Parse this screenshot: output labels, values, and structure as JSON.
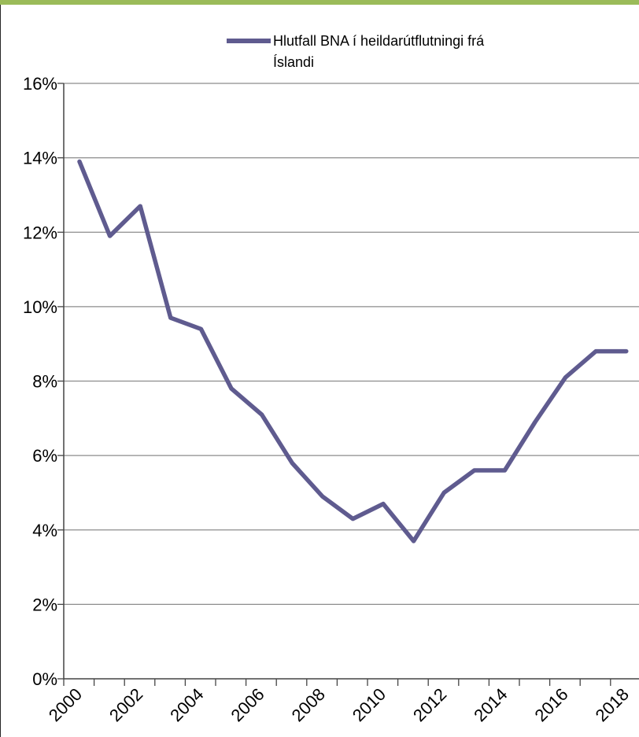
{
  "chart_data": {
    "type": "line",
    "title": "",
    "xlabel": "",
    "ylabel": "",
    "x": [
      2000,
      2001,
      2002,
      2003,
      2004,
      2005,
      2006,
      2007,
      2008,
      2009,
      2010,
      2011,
      2012,
      2013,
      2014,
      2015,
      2016,
      2017,
      2018
    ],
    "x_tick_labels": [
      "2000",
      "2002",
      "2004",
      "2006",
      "2008",
      "2010",
      "2012",
      "2014",
      "2016",
      "2018"
    ],
    "y_tick_labels": [
      "0%",
      "2%",
      "4%",
      "6%",
      "8%",
      "10%",
      "12%",
      "14%",
      "16%"
    ],
    "ylim": [
      0,
      16
    ],
    "grid": true,
    "legend_position": "top-center",
    "series": [
      {
        "name": "Hlutfall BNA í heildarútflutningi frá Íslandi",
        "legend_lines": [
          "Hlutfall BNA í heildarútflutningi frá",
          "Íslandi"
        ],
        "color": "#5f5b8f",
        "values": [
          13.9,
          11.9,
          12.7,
          9.7,
          9.4,
          7.8,
          7.1,
          5.8,
          4.9,
          4.3,
          4.7,
          3.7,
          5.0,
          5.6,
          5.6,
          6.9,
          8.1,
          8.8,
          8.8
        ]
      }
    ]
  }
}
